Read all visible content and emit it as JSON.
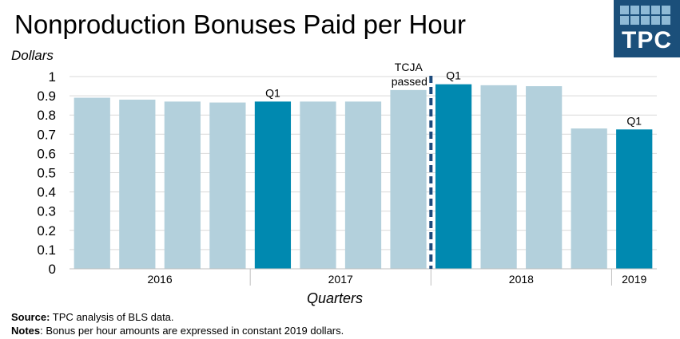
{
  "title": "Nonproduction Bonuses Paid per Hour",
  "logo": {
    "text": "TPC",
    "color": "#1b4f7a"
  },
  "footer": {
    "source_label": "Source:",
    "source_text": " TPC analysis of BLS data.",
    "notes_label": "Notes",
    "notes_text": ": Bonus per hour amounts are expressed  in constant 2019 dollars."
  },
  "chart_data": {
    "type": "bar",
    "title": "Nonproduction Bonuses Paid per Hour",
    "xlabel": "Quarters",
    "ylabel": "Dollars",
    "ylim": [
      0,
      1
    ],
    "yticks": [
      0,
      0.1,
      0.2,
      0.3,
      0.4,
      0.5,
      0.6,
      0.7,
      0.8,
      0.9,
      1
    ],
    "grid": true,
    "values": [
      0.89,
      0.88,
      0.87,
      0.865,
      0.87,
      0.87,
      0.87,
      0.93,
      0.96,
      0.955,
      0.95,
      0.73,
      0.725
    ],
    "highlight": [
      false,
      false,
      false,
      false,
      true,
      false,
      false,
      false,
      true,
      false,
      false,
      false,
      true
    ],
    "bar_labels": [
      "",
      "",
      "",
      "",
      "Q1",
      "",
      "",
      "",
      "Q1",
      "",
      "",
      "",
      "Q1"
    ],
    "year_labels": [
      {
        "label": "2016",
        "center": 1.5
      },
      {
        "label": "2017",
        "center": 5.5
      },
      {
        "label": "2018",
        "center": 9.5
      },
      {
        "label": "2019",
        "center": 12
      }
    ],
    "year_separators": [
      3.5,
      7.5,
      11.5
    ],
    "event_line": {
      "after_index": 7,
      "label_line1": "TCJA",
      "label_line2": "passed"
    },
    "colors": {
      "bar": "#b3d0dc",
      "highlight": "#0089b0",
      "event_line": "#1c4a7c",
      "grid": "#d9d9d9"
    }
  }
}
